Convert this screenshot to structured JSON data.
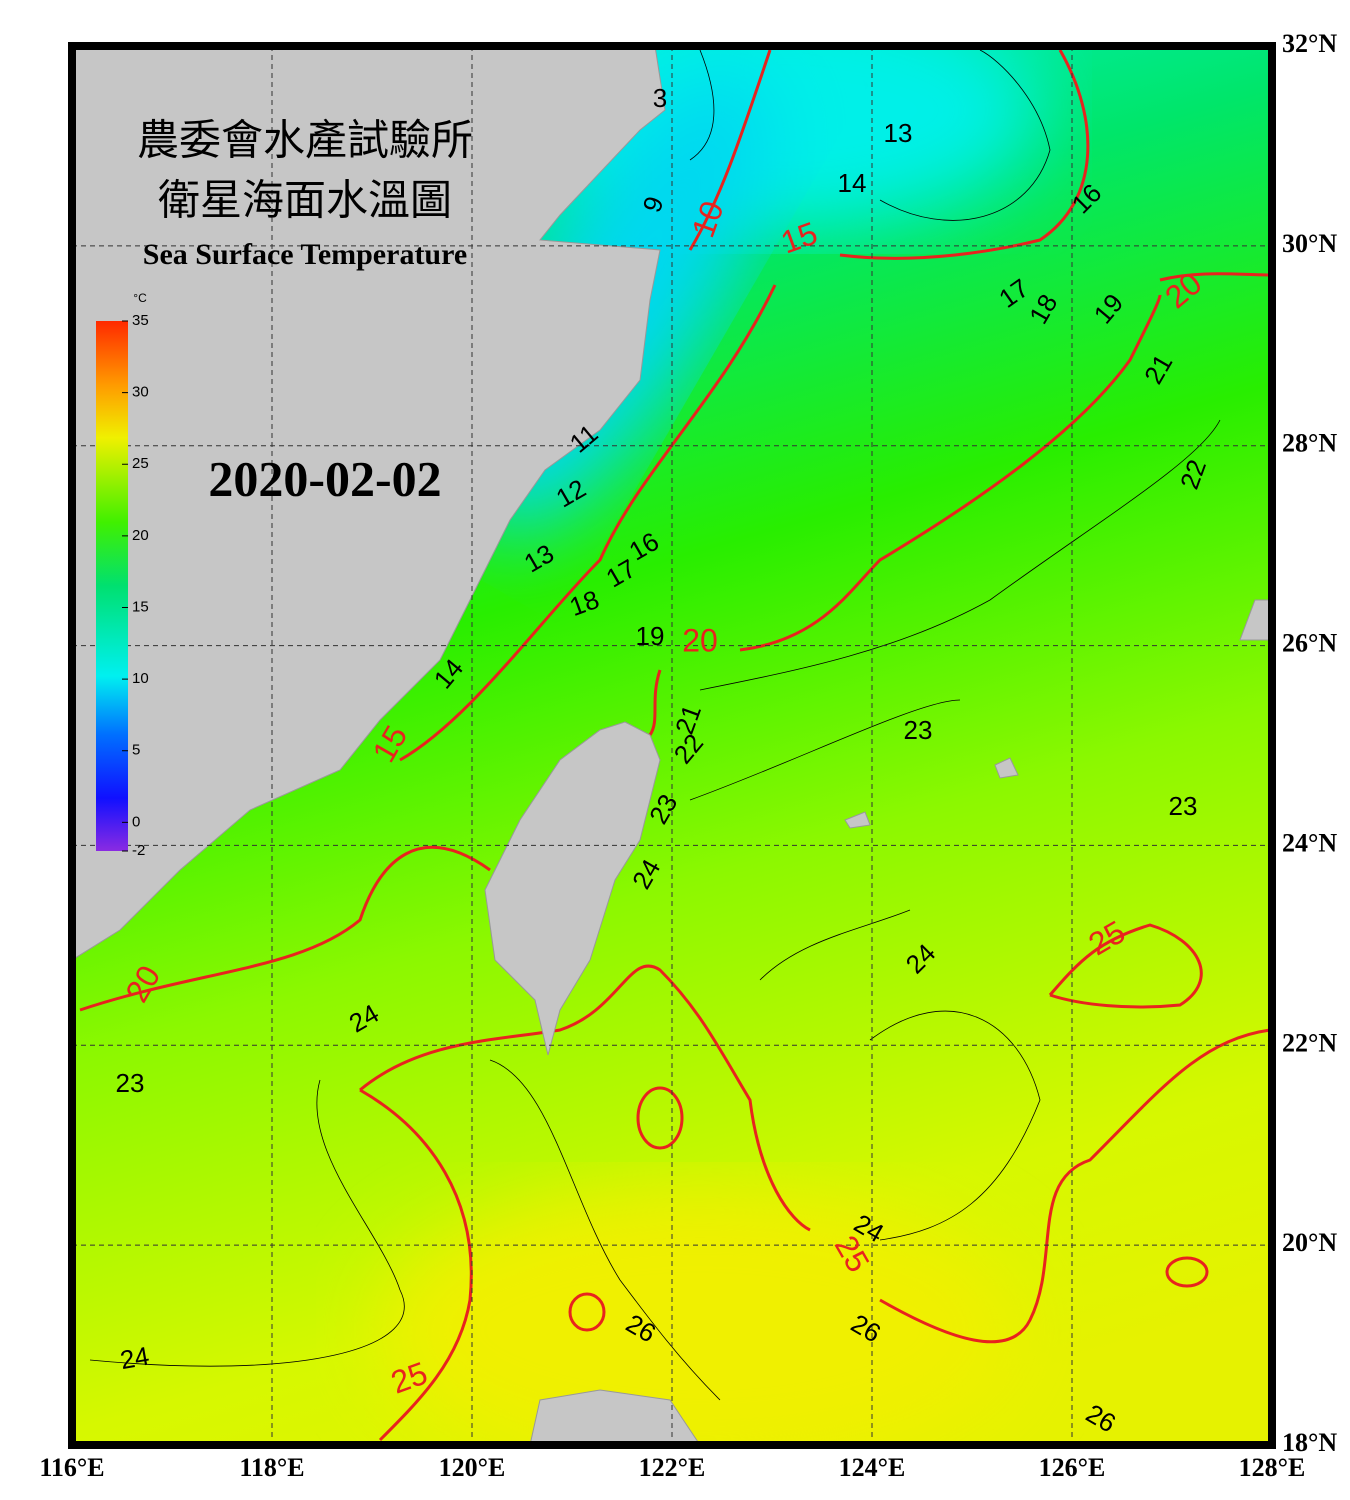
{
  "header": {
    "title_line1": "農委會水產試驗所",
    "title_line2": "衛星海面水溫圖",
    "title_en": "Sea Surface Temperature",
    "date": "2020-02-02"
  },
  "colorbar": {
    "unit": "°C",
    "range": [
      -2,
      35
    ],
    "ticks": [
      35,
      30,
      25,
      20,
      15,
      10,
      5,
      0,
      -2
    ]
  },
  "map": {
    "xlim": [
      116,
      128
    ],
    "ylim": [
      18,
      32
    ],
    "xticks": [
      {
        "value": 116,
        "label": "116°E"
      },
      {
        "value": 118,
        "label": "118°E"
      },
      {
        "value": 120,
        "label": "120°E"
      },
      {
        "value": 122,
        "label": "122°E"
      },
      {
        "value": 124,
        "label": "124°E"
      },
      {
        "value": 126,
        "label": "126°E"
      },
      {
        "value": 128,
        "label": "128°E"
      }
    ],
    "yticks": [
      {
        "value": 18,
        "label": "18°N"
      },
      {
        "value": 20,
        "label": "20°N"
      },
      {
        "value": 22,
        "label": "22°N"
      },
      {
        "value": 24,
        "label": "24°N"
      },
      {
        "value": 26,
        "label": "26°N"
      },
      {
        "value": 28,
        "label": "28°N"
      },
      {
        "value": 30,
        "label": "30°N"
      },
      {
        "value": 32,
        "label": "32°N"
      }
    ],
    "grid": true,
    "contour_labels": [
      {
        "value": 3,
        "color": "#000000"
      },
      {
        "value": 9,
        "color": "#000000"
      },
      {
        "value": 10,
        "color": "#e8231e"
      },
      {
        "value": 13,
        "color": "#000000"
      },
      {
        "value": 14,
        "color": "#000000"
      },
      {
        "value": 15,
        "color": "#e8231e"
      },
      {
        "value": 16,
        "color": "#000000"
      },
      {
        "value": 17,
        "color": "#000000"
      },
      {
        "value": 18,
        "color": "#000000"
      },
      {
        "value": 19,
        "color": "#000000"
      },
      {
        "value": 20,
        "color": "#e8231e"
      },
      {
        "value": 21,
        "color": "#000000"
      },
      {
        "value": 22,
        "color": "#000000"
      },
      {
        "value": 11,
        "color": "#000000"
      },
      {
        "value": 12,
        "color": "#000000"
      },
      {
        "value": 13,
        "color": "#000000"
      },
      {
        "value": 16,
        "color": "#000000"
      },
      {
        "value": 17,
        "color": "#000000"
      },
      {
        "value": 18,
        "color": "#000000"
      },
      {
        "value": 19,
        "color": "#000000"
      },
      {
        "value": 20,
        "color": "#e8231e"
      },
      {
        "value": 14,
        "color": "#000000"
      },
      {
        "value": 15,
        "color": "#e8231e"
      },
      {
        "value": 21,
        "color": "#000000"
      },
      {
        "value": 22,
        "color": "#000000"
      },
      {
        "value": 23,
        "color": "#000000"
      },
      {
        "value": 23,
        "color": "#000000"
      },
      {
        "value": 23,
        "color": "#000000"
      },
      {
        "value": 24,
        "color": "#000000"
      },
      {
        "value": 24,
        "color": "#000000"
      },
      {
        "value": 25,
        "color": "#e8231e"
      },
      {
        "value": 24,
        "color": "#000000"
      },
      {
        "value": 23,
        "color": "#000000"
      },
      {
        "value": 24,
        "color": "#000000"
      },
      {
        "value": 25,
        "color": "#e8231e"
      },
      {
        "value": 26,
        "color": "#000000"
      },
      {
        "value": 26,
        "color": "#000000"
      },
      {
        "value": 24,
        "color": "#000000"
      },
      {
        "value": 25,
        "color": "#e8231e"
      },
      {
        "value": 26,
        "color": "#000000"
      },
      {
        "value": 20,
        "color": "#e8231e"
      }
    ]
  }
}
